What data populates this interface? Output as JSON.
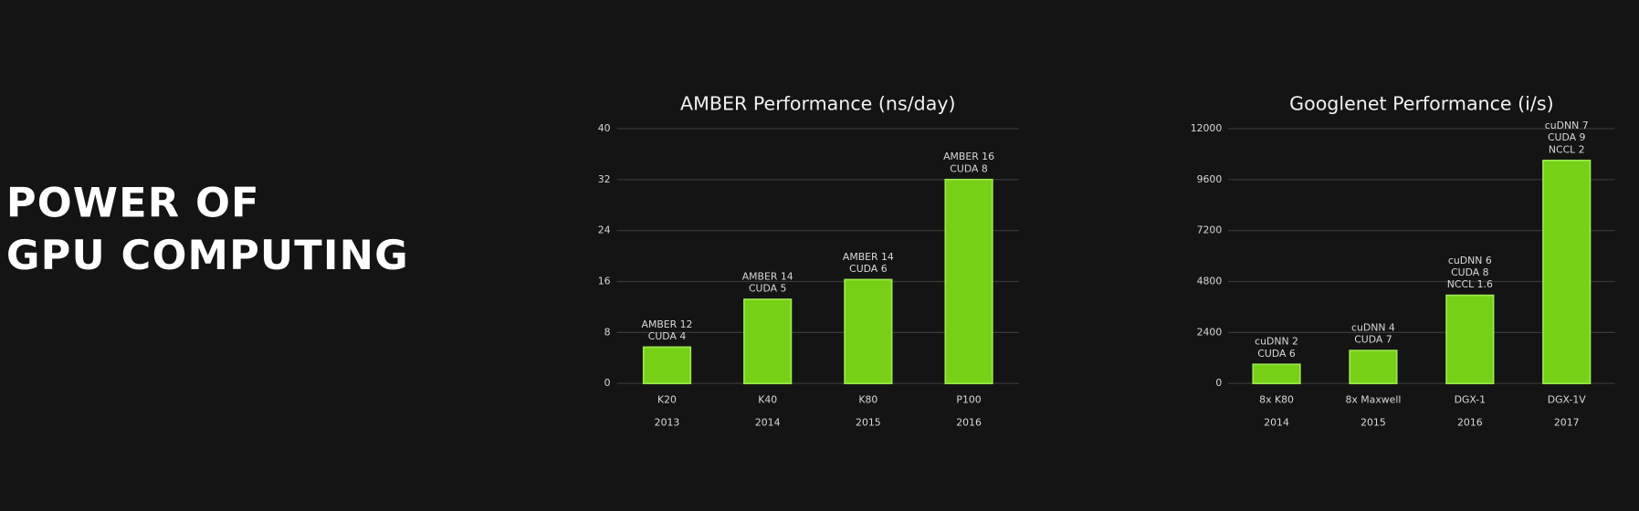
{
  "heading": [
    "POWER OF",
    "GPU COMPUTING"
  ],
  "chart_data": [
    {
      "type": "bar",
      "title": "AMBER Performance (ns/day)",
      "categories": [
        "K20",
        "K40",
        "K80",
        "P100"
      ],
      "category_years": [
        "2013",
        "2014",
        "2015",
        "2016"
      ],
      "values": [
        5.7,
        13.2,
        16.3,
        32
      ],
      "bar_labels": [
        [
          "AMBER 12",
          "CUDA 4"
        ],
        [
          "AMBER 14",
          "CUDA 5"
        ],
        [
          "AMBER 14",
          "CUDA 6"
        ],
        [
          "AMBER 16",
          "CUDA 8"
        ]
      ],
      "color": "#76d016",
      "ylim": [
        0,
        40
      ],
      "yticks": [
        0,
        8,
        16,
        24,
        32,
        40
      ],
      "grid": true
    },
    {
      "type": "bar",
      "title": "Googlenet Performance (i/s)",
      "categories": [
        "8x K80",
        "8x Maxwell",
        "DGX-1",
        "DGX-1V"
      ],
      "category_years": [
        "2014",
        "2015",
        "2016",
        "2017"
      ],
      "values": [
        900,
        1550,
        4150,
        10500
      ],
      "bar_labels": [
        [
          "cuDNN 2",
          "CUDA 6"
        ],
        [
          "cuDNN 4",
          "CUDA 7"
        ],
        [
          "cuDNN 6",
          "CUDA 8",
          "NCCL 1.6"
        ],
        [
          "cuDNN 7",
          "CUDA 9",
          "NCCL 2"
        ]
      ],
      "color": "#76d016",
      "ylim": [
        0,
        12000
      ],
      "yticks": [
        0,
        2400,
        4800,
        7200,
        9600,
        12000
      ],
      "grid": true
    }
  ]
}
